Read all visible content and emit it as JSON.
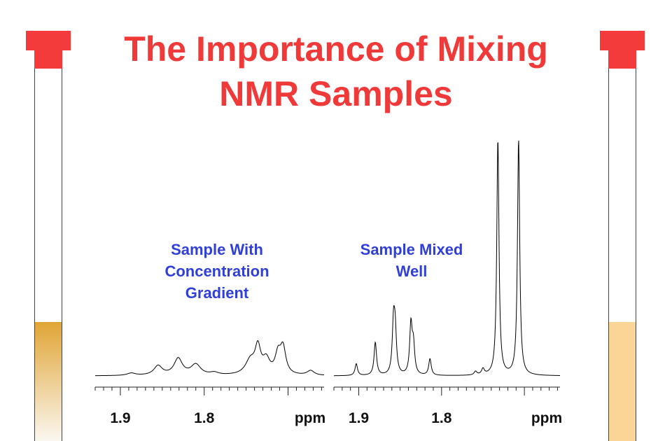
{
  "title": {
    "line1": "The Importance of Mixing",
    "line2": "NMR Samples"
  },
  "colors": {
    "title": "#f03a3a",
    "cap": "#f33b3b",
    "label": "#2f3fd8",
    "left_fill_top": "#e0a535",
    "left_fill_bottom": "#fbf7f0",
    "right_fill": "#fad596"
  },
  "left_tube": {
    "fill_level": 0.32,
    "fill_style": "gradient"
  },
  "right_tube": {
    "fill_level": 0.32,
    "fill_style": "uniform"
  },
  "spectra": [
    {
      "label_lines": [
        "Sample With",
        "Concentration",
        "Gradient"
      ],
      "xlim": [
        1.93,
        1.657
      ],
      "tick_labels": [
        "1.9",
        "1.8"
      ],
      "tick_values": [
        1.9,
        1.8
      ],
      "unit": "ppm",
      "peaks": [
        {
          "ppm": 1.887,
          "height": 0.01,
          "width": 0.006
        },
        {
          "ppm": 1.855,
          "height": 0.04,
          "width": 0.006
        },
        {
          "ppm": 1.831,
          "height": 0.07,
          "width": 0.006
        },
        {
          "ppm": 1.81,
          "height": 0.045,
          "width": 0.007
        },
        {
          "ppm": 1.788,
          "height": 0.01,
          "width": 0.006
        },
        {
          "ppm": 1.745,
          "height": 0.06,
          "width": 0.007
        },
        {
          "ppm": 1.736,
          "height": 0.11,
          "width": 0.004
        },
        {
          "ppm": 1.726,
          "height": 0.06,
          "width": 0.005
        },
        {
          "ppm": 1.712,
          "height": 0.08,
          "width": 0.004
        },
        {
          "ppm": 1.706,
          "height": 0.11,
          "width": 0.004
        },
        {
          "ppm": 1.673,
          "height": 0.02,
          "width": 0.005
        }
      ]
    },
    {
      "label_lines": [
        "Sample Mixed",
        "Well"
      ],
      "xlim": [
        1.93,
        1.657
      ],
      "tick_labels": [
        "1.9",
        "1.8"
      ],
      "tick_values": [
        1.9,
        1.8
      ],
      "unit": "ppm",
      "peaks": [
        {
          "ppm": 1.903,
          "height": 0.05,
          "width": 0.0018
        },
        {
          "ppm": 1.88,
          "height": 0.14,
          "width": 0.0018
        },
        {
          "ppm": 1.858,
          "height": 0.21,
          "width": 0.0018
        },
        {
          "ppm": 1.856,
          "height": 0.17,
          "width": 0.0018
        },
        {
          "ppm": 1.837,
          "height": 0.21,
          "width": 0.0018
        },
        {
          "ppm": 1.834,
          "height": 0.12,
          "width": 0.0018
        },
        {
          "ppm": 1.814,
          "height": 0.07,
          "width": 0.0018
        },
        {
          "ppm": 1.759,
          "height": 0.015,
          "width": 0.002
        },
        {
          "ppm": 1.75,
          "height": 0.025,
          "width": 0.002
        },
        {
          "ppm": 1.732,
          "height": 1.0,
          "width": 0.0016
        },
        {
          "ppm": 1.707,
          "height": 1.0,
          "width": 0.0016
        }
      ]
    }
  ]
}
